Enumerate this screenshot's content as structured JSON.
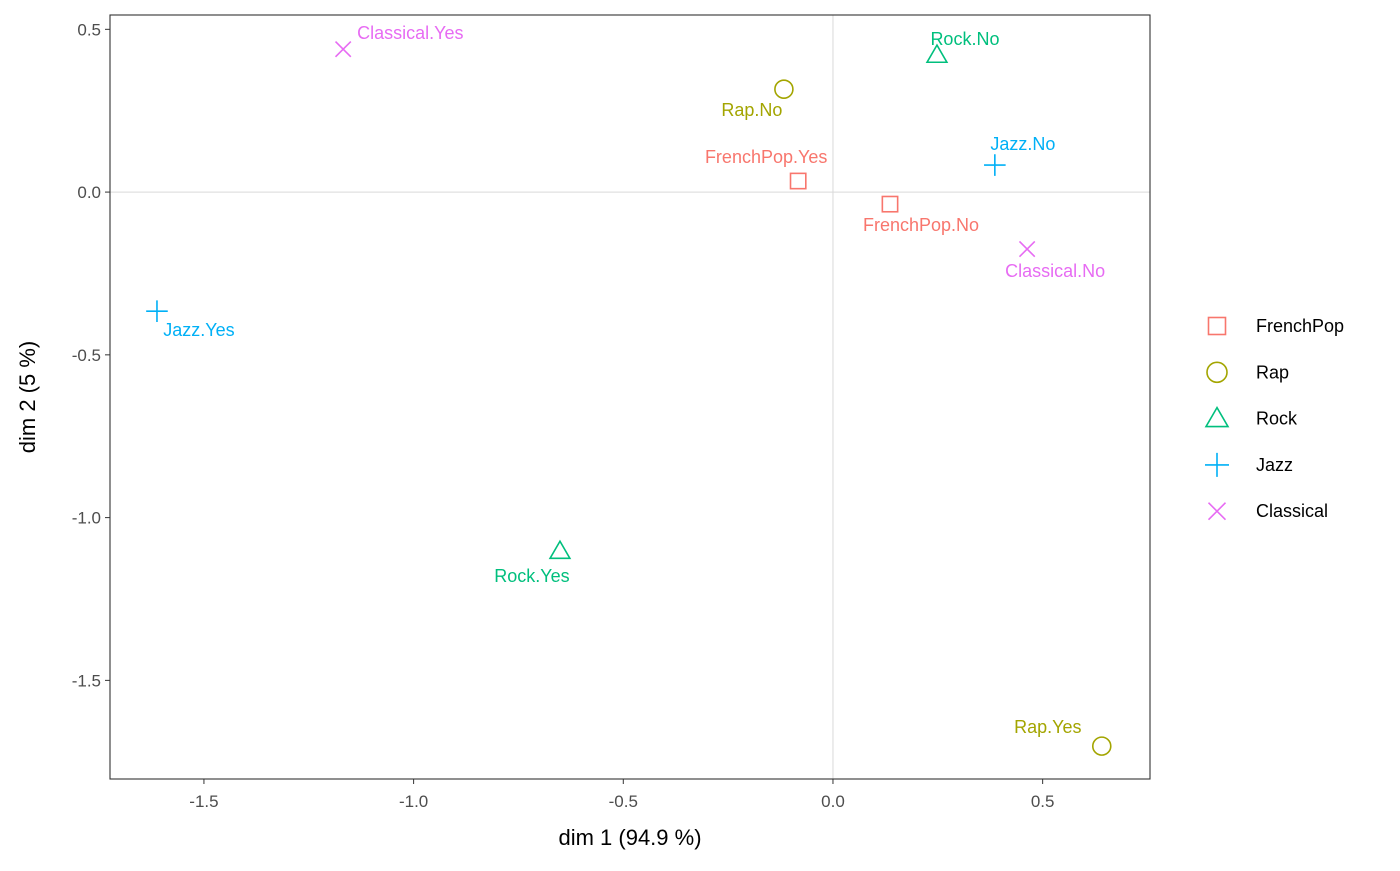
{
  "chart_data": {
    "type": "scatter",
    "title": "",
    "xlabel": "dim 1 (94.9 %)",
    "ylabel": "dim 2 (5 %)",
    "xlim": [
      -1.724,
      0.756
    ],
    "ylim": [
      -1.803,
      0.544
    ],
    "xticks": [
      -1.5,
      -1.0,
      -0.5,
      0.0,
      0.5
    ],
    "xtick_labels": [
      "-1.5",
      "-1.0",
      "-0.5",
      "0.0",
      "0.5"
    ],
    "yticks": [
      0.5,
      0.0,
      -0.5,
      -1.0,
      -1.5
    ],
    "ytick_labels": [
      "0.5",
      "0.0",
      "-0.5",
      "-1.0",
      "-1.5"
    ],
    "grid": false,
    "reference_lines": {
      "x": 0,
      "y": 0
    },
    "legend_position": "right",
    "legend": [
      {
        "name": "FrenchPop",
        "shape": "square",
        "color": "#F8766D"
      },
      {
        "name": "Rap",
        "shape": "circle",
        "color": "#A3A500"
      },
      {
        "name": "Rock",
        "shape": "triangle",
        "color": "#00BF7D"
      },
      {
        "name": "Jazz",
        "shape": "plus",
        "color": "#00B0F6"
      },
      {
        "name": "Classical",
        "shape": "cross",
        "color": "#E76BF3"
      }
    ],
    "points": [
      {
        "label": "Classical.Yes",
        "group": "Classical",
        "x": -1.168,
        "y": 0.439
      },
      {
        "label": "Rap.No",
        "group": "Rap",
        "x": -0.117,
        "y": 0.316
      },
      {
        "label": "Rock.No",
        "group": "Rock",
        "x": 0.248,
        "y": 0.421
      },
      {
        "label": "Jazz.No",
        "group": "Jazz",
        "x": 0.386,
        "y": 0.083
      },
      {
        "label": "FrenchPop.Yes",
        "group": "FrenchPop",
        "x": -0.083,
        "y": 0.034
      },
      {
        "label": "FrenchPop.No",
        "group": "FrenchPop",
        "x": 0.136,
        "y": -0.037
      },
      {
        "label": "Classical.No",
        "group": "Classical",
        "x": 0.463,
        "y": -0.175
      },
      {
        "label": "Jazz.Yes",
        "group": "Jazz",
        "x": -1.612,
        "y": -0.366
      },
      {
        "label": "Rock.Yes",
        "group": "Rock",
        "x": -0.651,
        "y": -1.103
      },
      {
        "label": "Rap.Yes",
        "group": "Rap",
        "x": 0.641,
        "y": -1.702
      }
    ]
  }
}
